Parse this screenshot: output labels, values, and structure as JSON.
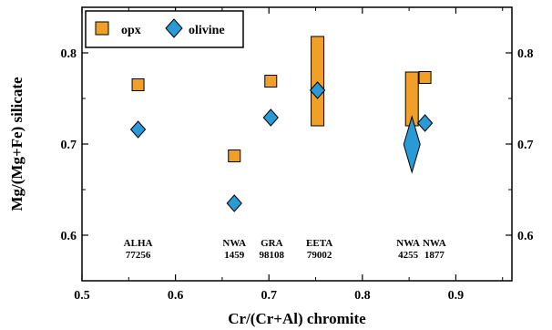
{
  "chart_data": {
    "type": "scatter",
    "xlabel": "Cr/(Cr+Al) chromite",
    "ylabel": "Mg/(Mg+Fe) silicate",
    "xlim": [
      0.5,
      0.96
    ],
    "ylim": [
      0.55,
      0.85
    ],
    "x_ticks": [
      "0.5",
      "0.6",
      "0.7",
      "0.8",
      "0.9"
    ],
    "y_ticks": [
      "0.6",
      "0.7",
      "0.8"
    ],
    "right_y_ticks": [
      "0.6",
      "0.7",
      "0.8"
    ],
    "grid": false,
    "legend_position": "top-left",
    "legend": [
      "opx",
      "olivine"
    ],
    "colors": {
      "opx": "#f0a028",
      "olivine": "#2a9ad6",
      "outline": "#000000"
    },
    "series": [
      {
        "name": "opx",
        "marker": "square",
        "points": [
          {
            "x": 0.56,
            "y": 0.765
          },
          {
            "x": 0.663,
            "y": 0.687
          },
          {
            "x": 0.702,
            "y": 0.769
          },
          {
            "x": 0.867,
            "y": 0.773
          }
        ],
        "ranges": [
          {
            "x": 0.752,
            "y_min": 0.72,
            "y_max": 0.818
          },
          {
            "x": 0.853,
            "y_min": 0.72,
            "y_max": 0.779
          }
        ]
      },
      {
        "name": "olivine",
        "marker": "diamond",
        "points": [
          {
            "x": 0.56,
            "y": 0.716
          },
          {
            "x": 0.663,
            "y": 0.635
          },
          {
            "x": 0.702,
            "y": 0.729
          },
          {
            "x": 0.752,
            "y": 0.759
          },
          {
            "x": 0.867,
            "y": 0.723
          }
        ],
        "ranges": [
          {
            "x": 0.853,
            "y_min": 0.677,
            "y_max": 0.722
          }
        ]
      }
    ],
    "sample_labels": [
      {
        "x": 0.56,
        "line1": "ALHA",
        "line2": "77256"
      },
      {
        "x": 0.663,
        "line1": "NWA",
        "line2": "1459"
      },
      {
        "x": 0.703,
        "line1": "GRA",
        "line2": "98108"
      },
      {
        "x": 0.754,
        "line1": "EETA",
        "line2": "79002"
      },
      {
        "x": 0.849,
        "line1": "NWA",
        "line2": "4255"
      },
      {
        "x": 0.877,
        "line1": "NWA",
        "line2": "1877"
      }
    ]
  }
}
